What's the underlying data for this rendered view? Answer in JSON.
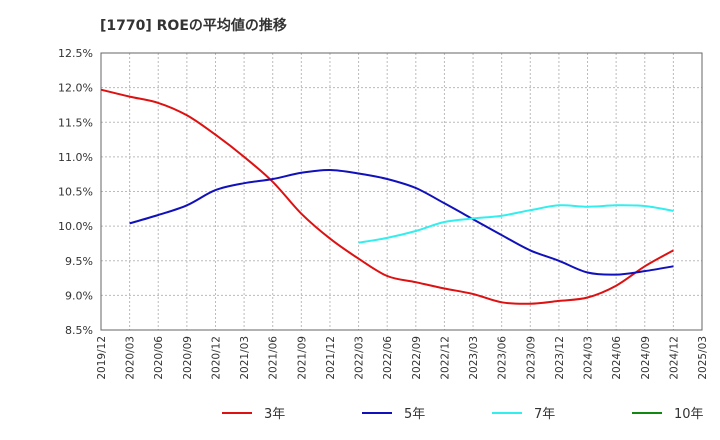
{
  "chart_data": {
    "type": "line",
    "title": "[1770]  ROEの平均値の推移",
    "xlabel": "",
    "ylabel": "",
    "ylim": [
      8.5,
      12.5
    ],
    "yticks": [
      "8.5%",
      "9.0%",
      "9.5%",
      "10.0%",
      "10.5%",
      "11.0%",
      "11.5%",
      "12.0%",
      "12.5%"
    ],
    "ytick_values": [
      8.5,
      9.0,
      9.5,
      10.0,
      10.5,
      11.0,
      11.5,
      12.0,
      12.5
    ],
    "x": [
      "2019/12",
      "2020/03",
      "2020/06",
      "2020/09",
      "2020/12",
      "2021/03",
      "2021/06",
      "2021/09",
      "2021/12",
      "2022/03",
      "2022/06",
      "2022/09",
      "2022/12",
      "2023/03",
      "2023/06",
      "2023/09",
      "2023/12",
      "2024/03",
      "2024/06",
      "2024/09",
      "2024/12",
      "2025/03"
    ],
    "grid": true,
    "legend_position": "bottom",
    "series": [
      {
        "name": "3年",
        "color": "#dd1111",
        "values": [
          11.97,
          11.87,
          11.78,
          11.6,
          11.32,
          11.0,
          10.64,
          10.18,
          9.82,
          9.53,
          9.28,
          9.19,
          9.1,
          9.02,
          8.9,
          8.88,
          8.92,
          8.97,
          9.14,
          9.42,
          9.65,
          null
        ]
      },
      {
        "name": "5年",
        "color": "#1111bb",
        "values": [
          null,
          10.04,
          10.16,
          10.3,
          10.52,
          10.62,
          10.68,
          10.77,
          10.81,
          10.76,
          10.68,
          10.55,
          10.33,
          10.1,
          9.87,
          9.65,
          9.5,
          9.33,
          9.3,
          9.35,
          9.42,
          null
        ]
      },
      {
        "name": "7年",
        "color": "#33eeee",
        "values": [
          null,
          null,
          null,
          null,
          null,
          null,
          null,
          null,
          null,
          9.76,
          9.83,
          9.93,
          10.06,
          10.11,
          10.15,
          10.23,
          10.3,
          10.28,
          10.3,
          10.29,
          10.22,
          null
        ]
      },
      {
        "name": "10年",
        "color": "#118811",
        "values": [
          null,
          null,
          null,
          null,
          null,
          null,
          null,
          null,
          null,
          null,
          null,
          null,
          null,
          null,
          null,
          null,
          null,
          null,
          null,
          null,
          null,
          null
        ]
      }
    ]
  }
}
